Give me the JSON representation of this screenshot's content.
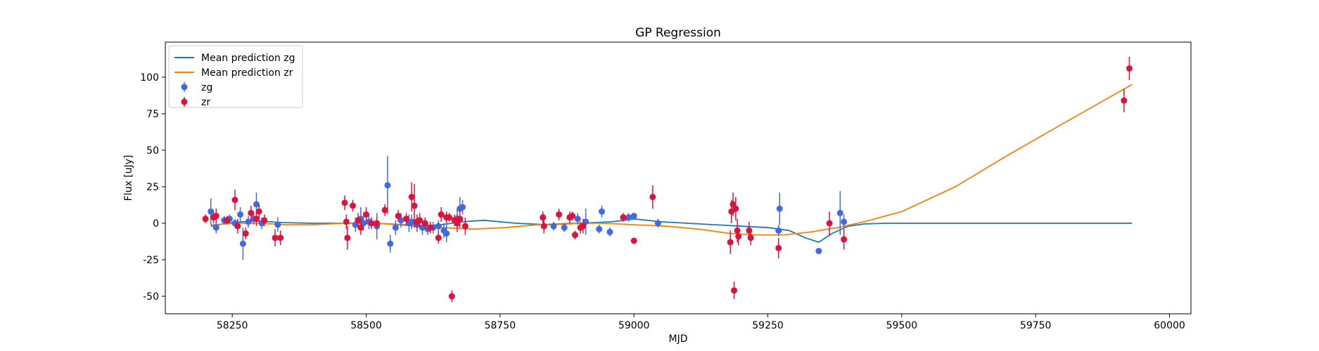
{
  "chart_data": {
    "type": "scatter",
    "title": "GP Regression",
    "xlabel": "MJD",
    "ylabel": "Flux [uJy]",
    "xlim": [
      58125,
      60040
    ],
    "ylim": [
      -62,
      124
    ],
    "xticks": [
      58250,
      58500,
      58750,
      59000,
      59250,
      59500,
      59750,
      60000
    ],
    "yticks": [
      -50,
      -25,
      0,
      25,
      50,
      75,
      100
    ],
    "grid": false,
    "legend_position": "top-left",
    "legend": [
      "Mean prediction zg",
      "Mean prediction zr",
      "zg",
      "zr"
    ],
    "colors": {
      "zg_line": "#1f77b4",
      "zr_line": "#ff7f0e",
      "zg_points": "#4169e1",
      "zr_points": "#dc143c"
    },
    "lines": [
      {
        "name": "Mean prediction zg",
        "x": [
          58210,
          58240,
          58270,
          58300,
          58340,
          58400,
          58460,
          58520,
          58560,
          58600,
          58640,
          58680,
          58720,
          58780,
          58840,
          58900,
          58960,
          59000,
          59050,
          59100,
          59150,
          59200,
          59250,
          59290,
          59320,
          59345,
          59370,
          59400,
          59430,
          59470,
          59550,
          59700,
          59930
        ],
        "y": [
          -2,
          0,
          1,
          1.5,
          0.5,
          0,
          0,
          0,
          -1,
          -2,
          -1,
          1,
          2,
          0,
          -1,
          0,
          1,
          3,
          1,
          0,
          -1,
          -2,
          -3,
          -5,
          -10,
          -13,
          -7,
          -2,
          -0.5,
          0,
          0,
          0,
          0
        ]
      },
      {
        "name": "Mean prediction zr",
        "x": [
          58210,
          58260,
          58300,
          58350,
          58400,
          58460,
          58520,
          58580,
          58640,
          58700,
          58760,
          58820,
          58880,
          58940,
          59000,
          59060,
          59120,
          59180,
          59230,
          59280,
          59330,
          59380,
          59430,
          59500,
          59600,
          59700,
          59800,
          59930
        ],
        "y": [
          -1,
          0,
          0,
          -1,
          -1,
          0,
          0,
          -1,
          -3,
          -4,
          -3,
          -1,
          0,
          0,
          -1,
          -2,
          -4,
          -7,
          -8,
          -8,
          -6,
          -3,
          1,
          8,
          25,
          47,
          68,
          95
        ]
      }
    ],
    "series": [
      {
        "name": "zg",
        "x": [
          58210,
          58220,
          58235,
          58245,
          58255,
          58265,
          58270,
          58280,
          58290,
          58295,
          58305,
          58335,
          58480,
          58490,
          58495,
          58505,
          58520,
          58540,
          58545,
          58555,
          58565,
          58580,
          58585,
          58595,
          58605,
          58615,
          58625,
          58635,
          58645,
          58650,
          58670,
          58675,
          58680,
          58830,
          58850,
          58870,
          58895,
          58910,
          58935,
          58940,
          58955,
          58990,
          59000,
          59045,
          59270,
          59272,
          59345,
          59385,
          59392
        ],
        "y": [
          8,
          -3,
          2,
          3,
          0,
          6,
          -14,
          1,
          3,
          13,
          0,
          -1,
          -1,
          3,
          0,
          1,
          -2,
          26,
          -14,
          -3,
          2,
          0,
          1,
          -1,
          -3,
          -4,
          -3,
          -2,
          -5,
          -7,
          3,
          10,
          11,
          4,
          -2,
          -3,
          3,
          1,
          -4,
          8,
          -6,
          4,
          5,
          0,
          -5,
          10,
          -19,
          7,
          1
        ],
        "err": [
          9,
          4,
          3,
          3,
          3,
          5,
          11,
          4,
          4,
          8,
          4,
          5,
          5,
          8,
          5,
          5,
          9,
          20,
          6,
          5,
          5,
          6,
          5,
          5,
          5,
          4,
          4,
          4,
          5,
          6,
          7,
          8,
          5,
          3,
          3,
          3,
          4,
          9,
          3,
          4,
          3,
          3,
          2,
          3,
          4,
          11,
          2,
          15,
          5
        ]
      },
      {
        "name": "zr",
        "x": [
          58200,
          58215,
          58220,
          58240,
          58255,
          58260,
          58275,
          58285,
          58295,
          58300,
          58310,
          58330,
          58340,
          58460,
          58463,
          58465,
          58475,
          58485,
          58490,
          58500,
          58510,
          58520,
          58535,
          58560,
          58575,
          58585,
          58590,
          58595,
          58600,
          58610,
          58620,
          58635,
          58640,
          58650,
          58655,
          58660,
          58665,
          58670,
          58675,
          58685,
          58830,
          58832,
          58860,
          58880,
          58885,
          58890,
          58900,
          58905,
          58980,
          59000,
          59035,
          59180,
          59182,
          59185,
          59187,
          59190,
          59193,
          59195,
          59215,
          59218,
          59270,
          59365,
          59392,
          59915,
          59925
        ],
        "y": [
          3,
          4,
          5,
          2,
          16,
          -2,
          -7,
          7,
          3,
          8,
          2,
          -10,
          -10,
          14,
          1,
          -10,
          12,
          2,
          -3,
          6,
          0,
          0,
          9,
          5,
          3,
          18,
          12,
          1,
          2,
          0,
          -3,
          -10,
          6,
          4,
          4,
          -50,
          2,
          0,
          3,
          -2,
          4,
          -2,
          6,
          4,
          5,
          -8,
          -3,
          -2,
          4,
          -12,
          18,
          -13,
          8,
          13,
          -46,
          10,
          -5,
          -9,
          -5,
          -10,
          -17,
          0,
          -11,
          84,
          106
        ],
        "err": [
          3,
          4,
          5,
          3,
          7,
          5,
          4,
          5,
          5,
          5,
          4,
          6,
          5,
          5,
          5,
          8,
          4,
          5,
          5,
          5,
          4,
          4,
          4,
          4,
          4,
          10,
          15,
          5,
          5,
          4,
          4,
          4,
          5,
          4,
          3,
          4,
          4,
          6,
          6,
          6,
          4,
          5,
          4,
          4,
          3,
          3,
          4,
          5,
          3,
          2,
          8,
          8,
          8,
          8,
          6,
          8,
          8,
          6,
          6,
          5,
          7,
          8,
          7,
          8,
          8
        ]
      }
    ]
  }
}
